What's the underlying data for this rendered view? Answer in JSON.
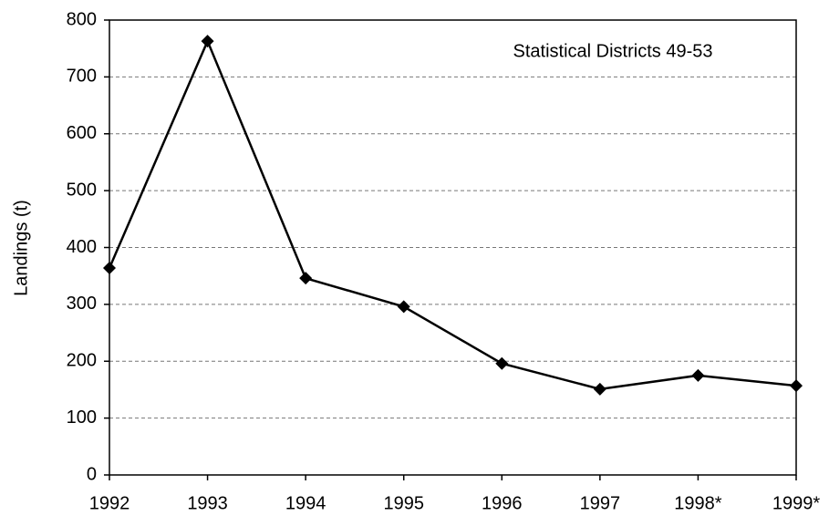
{
  "chart_data": {
    "type": "line",
    "annotation": "Statistical Districts 49-53",
    "y_label": "Landings (t)",
    "categories": [
      "1992",
      "1993",
      "1994",
      "1995",
      "1996",
      "1997",
      "1998*",
      "1999*"
    ],
    "values": [
      364,
      763,
      346,
      296,
      196,
      151,
      175,
      157
    ],
    "color": "#000000",
    "ylim": [
      0,
      800
    ],
    "yticks": [
      0,
      100,
      200,
      300,
      400,
      500,
      600,
      700,
      800
    ],
    "grid": true
  }
}
